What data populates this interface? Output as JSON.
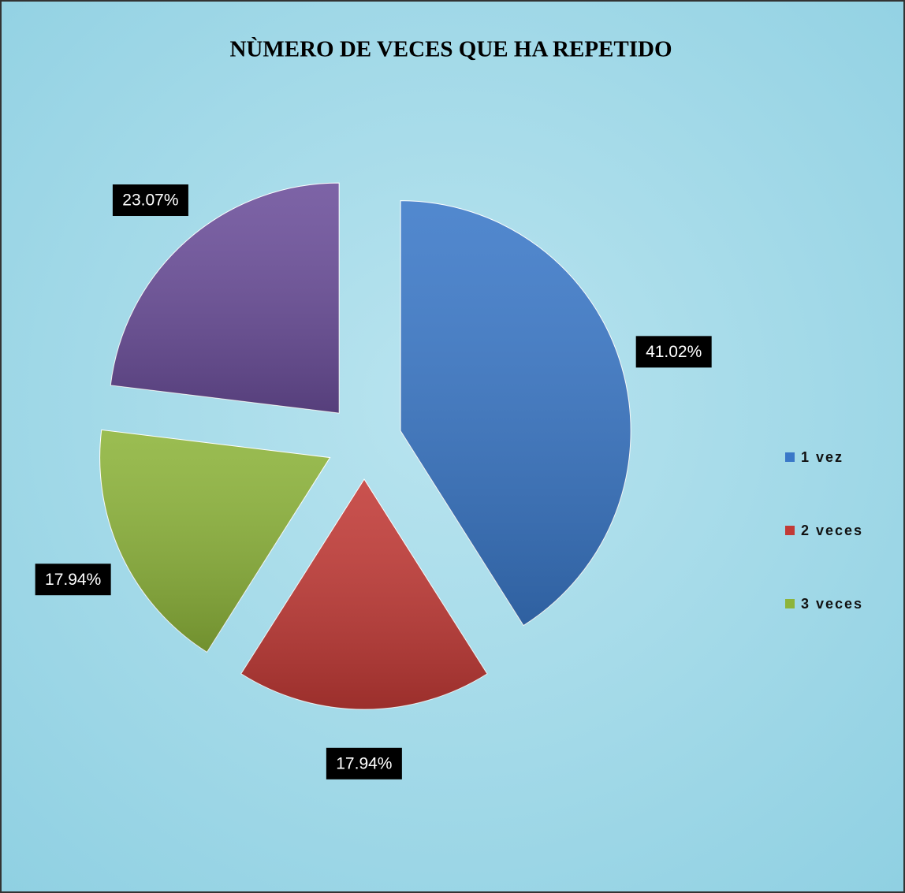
{
  "chart_data": {
    "type": "pie",
    "title": "NÙMERO DE VECES QUE HA REPETIDO",
    "categories": [
      "1 vez",
      "2 veces",
      "3 veces",
      null
    ],
    "values": [
      41.02,
      17.94,
      17.94,
      23.07
    ],
    "value_labels": [
      "41.02%",
      "17.94%",
      "17.94%",
      "23.07%"
    ],
    "colors": [
      "#3a78c8",
      "#c23a36",
      "#8db43a",
      "#6b4e9a"
    ],
    "legend": "right"
  }
}
